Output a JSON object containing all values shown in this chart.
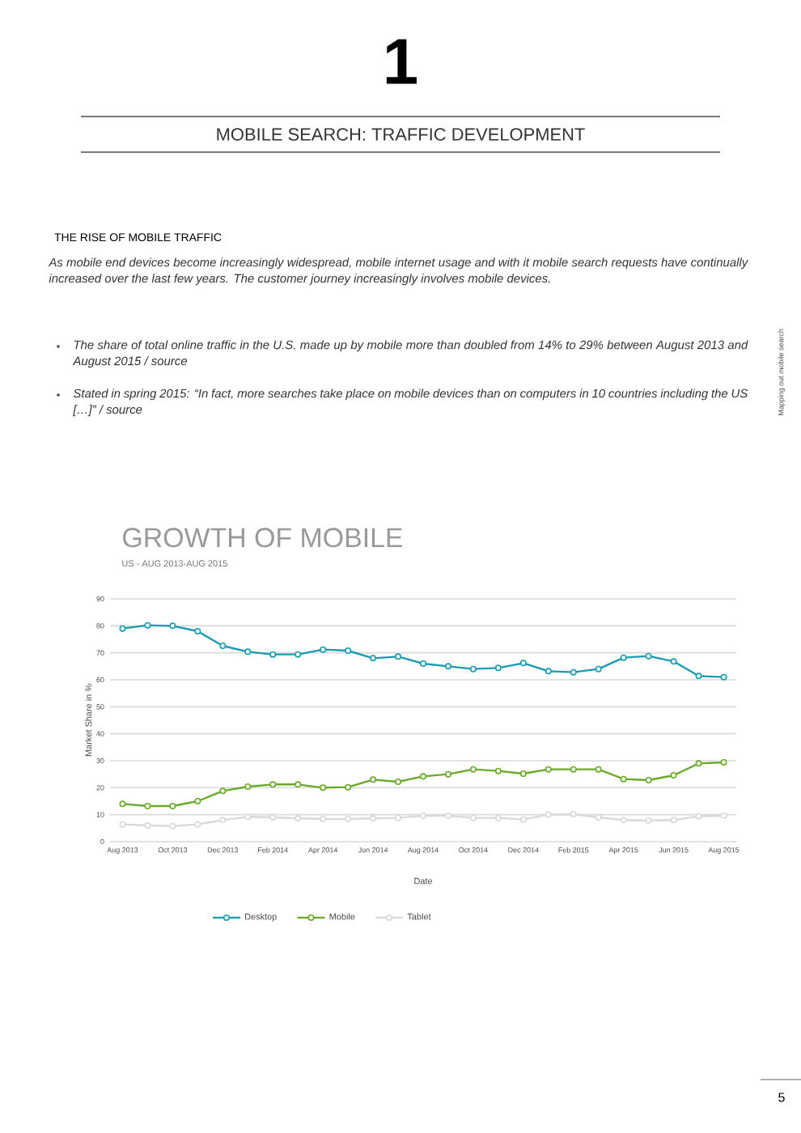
{
  "chart_data": {
    "type": "line",
    "title": "GROWTH OF MOBILE",
    "subtitle": "US - AUG 2013-AUG 2015",
    "xlabel": "Date",
    "ylabel": "Market Share in %",
    "categories": [
      "Aug 2013",
      null,
      "Oct 2013",
      null,
      "Dec 2013",
      null,
      "Feb 2014",
      null,
      "Apr 2014",
      null,
      "Jun 2014",
      null,
      "Aug 2014",
      null,
      "Oct 2014",
      null,
      "Dec 2014",
      null,
      "Feb 2015",
      null,
      "Apr 2015",
      null,
      "Jun 2015",
      null,
      "Aug 2015"
    ],
    "series": [
      {
        "name": "Desktop",
        "color": "#1a9bb0",
        "values": [
          79,
          80.2,
          80,
          78,
          72.6,
          70.4,
          69.4,
          69.4,
          71.2,
          70.8,
          68,
          68.6,
          66,
          65,
          64,
          64.4,
          66.2,
          63.2,
          62.8,
          64,
          68.2,
          68.8,
          66.8,
          61.4,
          61
        ]
      },
      {
        "name": "Mobile",
        "color": "#6aaa2a",
        "values": [
          14,
          13.2,
          13.2,
          15,
          18.8,
          20.4,
          21.2,
          21.2,
          20,
          20.2,
          23,
          22.2,
          24.2,
          25,
          26.8,
          26.2,
          25.2,
          26.8,
          26.8,
          26.8,
          23.2,
          22.8,
          24.6,
          29,
          29.4
        ]
      },
      {
        "name": "Tablet",
        "color": "#d9d9d9",
        "values": [
          6.4,
          6,
          5.8,
          6.4,
          8,
          9.2,
          9,
          8.6,
          8.4,
          8.4,
          8.6,
          8.8,
          9.6,
          9.6,
          8.8,
          8.8,
          8.2,
          10,
          10.2,
          9,
          8,
          7.8,
          8,
          9.4,
          9.6
        ]
      }
    ],
    "ylim": [
      0,
      90
    ],
    "yticks": [
      0,
      10,
      20,
      30,
      40,
      50,
      60,
      70,
      80,
      90
    ],
    "grid": "y",
    "legend": "bottom",
    "marker": "circle",
    "line_style": "solid",
    "annotations": [
      "1",
      "MOBILE SEARCH: TRAFFIC DEVELOPMENT",
      "THE RISE OF MOBILE TRAFFIC",
      "As mobile end devices become increasingly widespread, mobile internet usage and with it mobile search requests have continually increased over the last few years. The customer journey increasingly involves mobile devices.",
      "The share of total online traffic in the U.S. made up by mobile more than doubled from 14% to 29% between August 2013 and August 2015 / source",
      "Stated in spring 2015: “In fact, more searches take place on mobile devices than on computers in 10 countries including the US […]” / source",
      "Mapping out mobile search",
      "5"
    ]
  }
}
